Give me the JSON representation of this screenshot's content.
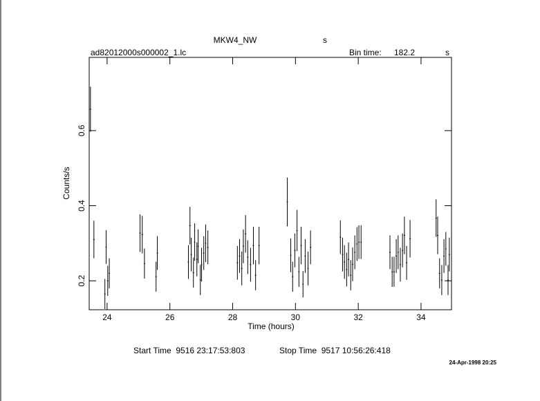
{
  "chart_data": {
    "type": "errorbar",
    "title": "MKW4_NW",
    "title_unit": "s",
    "file_name": "ad82012000s000002_1.lc",
    "bin_time_label": "Bin time:",
    "bin_time": "182.2",
    "bin_time_unit": "s",
    "xlabel": "Time (hours)",
    "ylabel": "Counts/s",
    "start_time": "Start Time  9516 23:17:53:803",
    "stop_time": "Stop Time  9517 10:56:26:418",
    "date_stamp": "24-Apr-1998 20:25",
    "color": "#000000",
    "xlim": [
      23.43,
      34.97
    ],
    "ylim": [
      0.123,
      0.795
    ],
    "xticks": [
      24,
      26,
      28,
      30,
      32,
      34
    ],
    "yticks": [
      0.2,
      0.4,
      0.6
    ],
    "x": [
      23.47,
      23.58,
      23.93,
      23.97,
      24.02,
      24.07,
      25.05,
      25.12,
      25.19,
      25.56,
      25.6,
      26.59,
      26.64,
      26.68,
      26.75,
      26.79,
      26.86,
      26.9,
      26.97,
      27.01,
      27.08,
      27.14,
      27.21,
      28.15,
      28.22,
      28.29,
      28.34,
      28.41,
      28.48,
      28.57,
      28.66,
      28.73,
      28.84,
      29.74,
      29.85,
      29.91,
      29.98,
      30.05,
      30.11,
      30.18,
      30.24,
      30.31,
      30.4,
      30.48,
      31.43,
      31.5,
      31.56,
      31.63,
      31.69,
      31.76,
      31.82,
      31.89,
      31.96,
      32.02,
      32.09,
      33.01,
      33.08,
      33.14,
      33.21,
      33.27,
      33.34,
      33.41,
      33.47,
      33.54,
      33.65,
      34.48,
      34.53,
      34.59,
      34.66,
      34.73,
      34.79,
      34.86,
      34.9
    ],
    "values": [
      0.657,
      0.31,
      0.165,
      0.29,
      0.2,
      0.22,
      0.327,
      0.323,
      0.246,
      0.211,
      0.274,
      0.25,
      0.347,
      0.27,
      0.222,
      0.303,
      0.257,
      0.292,
      0.202,
      0.243,
      0.274,
      0.3,
      0.289,
      0.248,
      0.266,
      0.233,
      0.292,
      0.325,
      0.263,
      0.243,
      0.294,
      0.215,
      0.294,
      0.41,
      0.268,
      0.211,
      0.281,
      0.334,
      0.224,
      0.294,
      0.191,
      0.266,
      0.233,
      0.289,
      0.316,
      0.27,
      0.25,
      0.23,
      0.257,
      0.215,
      0.244,
      0.276,
      0.298,
      0.303,
      0.303,
      0.276,
      0.224,
      0.224,
      0.266,
      0.276,
      0.243,
      0.281,
      0.321,
      0.248,
      0.312,
      0.367,
      0.321,
      0.22,
      0.202,
      0.266,
      0.285,
      0.202,
      0.27
    ],
    "errors": [
      0.06,
      0.05,
      0.04,
      0.045,
      0.04,
      0.04,
      0.05,
      0.05,
      0.04,
      0.04,
      0.045,
      0.045,
      0.05,
      0.045,
      0.04,
      0.05,
      0.045,
      0.045,
      0.04,
      0.045,
      0.045,
      0.05,
      0.045,
      0.045,
      0.045,
      0.045,
      0.045,
      0.05,
      0.045,
      0.045,
      0.05,
      0.04,
      0.05,
      0.065,
      0.045,
      0.04,
      0.045,
      0.055,
      0.04,
      0.05,
      0.035,
      0.045,
      0.045,
      0.045,
      0.045,
      0.045,
      0.045,
      0.045,
      0.045,
      0.04,
      0.045,
      0.045,
      0.045,
      0.045,
      0.045,
      0.045,
      0.04,
      0.04,
      0.045,
      0.045,
      0.045,
      0.045,
      0.05,
      0.045,
      0.05,
      0.05,
      0.05,
      0.04,
      0.04,
      0.045,
      0.045,
      0.04,
      0.045
    ]
  }
}
